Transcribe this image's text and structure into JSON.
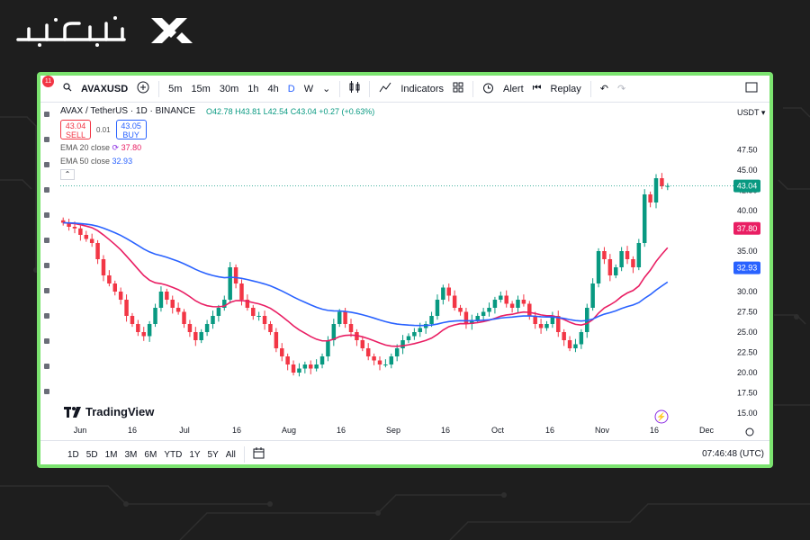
{
  "brand": {
    "logo_text": "تیوبیت"
  },
  "toolbar": {
    "badge": "11",
    "symbol": "AVAXUSD",
    "timeframes": [
      "5m",
      "15m",
      "30m",
      "1h",
      "4h",
      "D",
      "W"
    ],
    "active_timeframe": "D",
    "indicators_label": "Indicators",
    "alert_label": "Alert",
    "replay_label": "Replay"
  },
  "legend": {
    "title": "AVAX / TetherUS · 1D · BINANCE",
    "open": "O42.78",
    "high": "H43.81",
    "low": "L42.54",
    "close": "C43.04",
    "change": "+0.27 (+0.63%)",
    "sell_price": "43.04",
    "sell_label": "SELL",
    "spread": "0.01",
    "buy_price": "43.05",
    "buy_label": "BUY",
    "ema20_label": "EMA 20 close",
    "ema20_value": "37.80",
    "ema50_label": "EMA 50 close",
    "ema50_value": "32.93"
  },
  "bottom_bar": {
    "ranges": [
      "1D",
      "5D",
      "1M",
      "3M",
      "6M",
      "YTD",
      "1Y",
      "5Y",
      "All"
    ],
    "time": "07:46:48 (UTC)"
  },
  "watermark": "TradingView",
  "colors": {
    "up": "#089981",
    "down": "#f23645",
    "ema20": "#e91e63",
    "ema50": "#2962ff",
    "frame": "#7be36f"
  },
  "chart_data": {
    "type": "candlestick",
    "title": "AVAX / TetherUS · 1D · BINANCE",
    "currency": "USDT",
    "ylim": [
      15,
      50
    ],
    "y_ticks": [
      15.0,
      17.5,
      20.0,
      22.5,
      25.0,
      27.5,
      30.0,
      32.5,
      35.0,
      37.5,
      40.0,
      42.5,
      45.0,
      47.5
    ],
    "x_ticks": [
      "Jun",
      "16",
      "Jul",
      "16",
      "Aug",
      "16",
      "Sep",
      "16",
      "Oct",
      "16",
      "Nov",
      "16",
      "Dec"
    ],
    "last_price": 43.04,
    "series": [
      {
        "name": "EMA 20 close",
        "last": 37.8
      },
      {
        "name": "EMA 50 close",
        "last": 32.93
      }
    ],
    "close_path": [
      38.5,
      38,
      37.8,
      37,
      36.5,
      36,
      34,
      32,
      31,
      30,
      29,
      27,
      26,
      25,
      24.5,
      26,
      28,
      30,
      29,
      28,
      27.5,
      26,
      25,
      24,
      25,
      26,
      27,
      28,
      29,
      33,
      31,
      29,
      28,
      27,
      27,
      26,
      25,
      23,
      22,
      21,
      20,
      20.5,
      21,
      20.5,
      21,
      22,
      24,
      26,
      27.5,
      26,
      25,
      24,
      23,
      22,
      21.5,
      21,
      21,
      22,
      23,
      24,
      24.5,
      25,
      25.5,
      26,
      27,
      29,
      30.5,
      29.5,
      28,
      27.5,
      26,
      26.5,
      27,
      27.5,
      28,
      29,
      29.5,
      28.5,
      28,
      29,
      28.5,
      27,
      26,
      25.5,
      26,
      27,
      25,
      24,
      23,
      23.5,
      25,
      28,
      31,
      35,
      34,
      32,
      33,
      35,
      34,
      33,
      36,
      42,
      41,
      44,
      43,
      43.04
    ]
  }
}
